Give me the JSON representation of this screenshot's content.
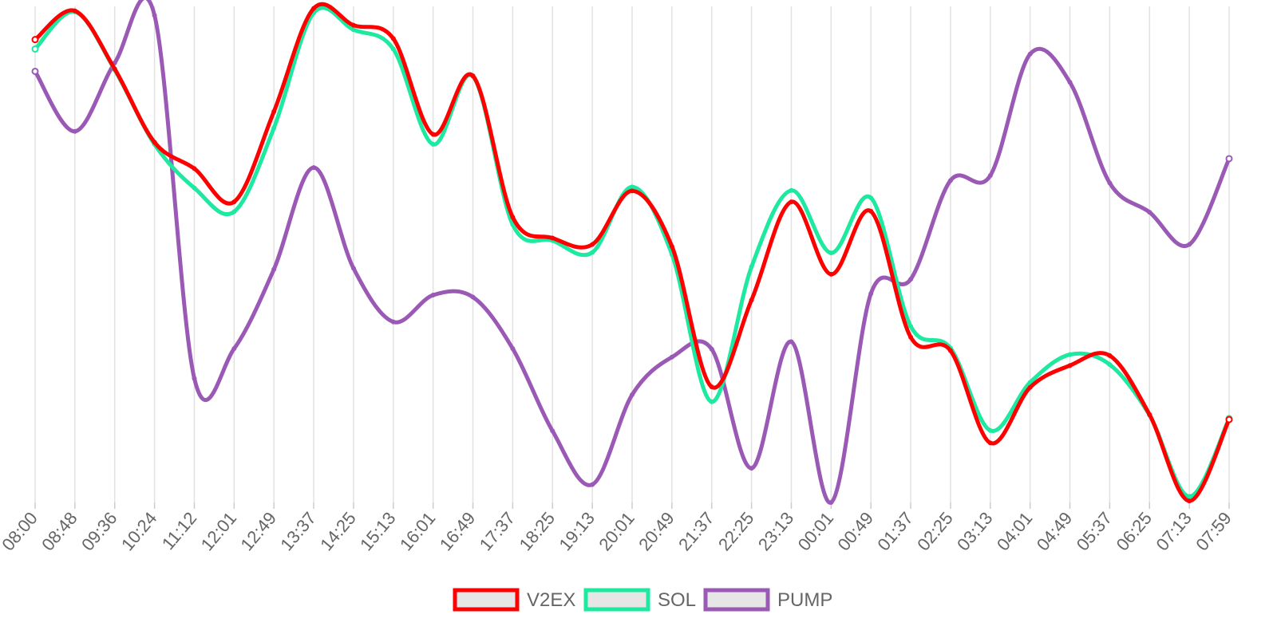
{
  "chart_data": {
    "type": "line",
    "title": "",
    "xlabel": "",
    "ylabel": "",
    "grid": "vertical",
    "legend_placement": "bottom-center",
    "x": [
      "08:00",
      "08:48",
      "09:36",
      "10:24",
      "11:12",
      "12:01",
      "12:49",
      "13:37",
      "14:25",
      "15:13",
      "16:01",
      "16:49",
      "17:37",
      "18:25",
      "19:13",
      "20:01",
      "20:49",
      "21:37",
      "22:25",
      "23:13",
      "00:01",
      "00:49",
      "01:37",
      "02:25",
      "03:13",
      "04:01",
      "04:49",
      "05:37",
      "06:25",
      "07:13",
      "07:59"
    ],
    "ylim": [
      0,
      100
    ],
    "series": [
      {
        "name": "V2EX",
        "color": "#ff0000",
        "values": [
          93.3,
          99.1,
          87.4,
          72.6,
          67.3,
          60.6,
          78.8,
          99.6,
          96.2,
          93.5,
          74.2,
          86.0,
          57.5,
          53.3,
          52.0,
          62.8,
          51.6,
          23.3,
          40.8,
          60.6,
          46.0,
          58.7,
          33.3,
          30.6,
          12.0,
          23.2,
          27.6,
          29.6,
          17.7,
          0.3,
          16.7
        ]
      },
      {
        "name": "SOL",
        "color": "#1de9a0",
        "values": [
          91.4,
          98.9,
          87.2,
          72.2,
          63.4,
          58.6,
          75.5,
          98.7,
          95.3,
          91.4,
          72.2,
          85.9,
          56.0,
          52.8,
          50.4,
          63.6,
          50.0,
          20.3,
          47.5,
          62.9,
          50.3,
          61.4,
          35.5,
          31.1,
          14.5,
          24.2,
          29.8,
          27.8,
          17.6,
          1.2,
          16.9
        ]
      },
      {
        "name": "PUMP",
        "color": "#9b59b6",
        "values": [
          86.9,
          74.8,
          88.6,
          98.2,
          25.0,
          31.0,
          47.0,
          67.5,
          47.2,
          36.4,
          41.8,
          41.4,
          31.0,
          14.4,
          3.6,
          21.7,
          29.3,
          30.9,
          6.9,
          32.4,
          0.0,
          42.1,
          45.0,
          64.9,
          65.9,
          90.4,
          84.7,
          64.4,
          58.5,
          52.0,
          69.3
        ]
      }
    ]
  }
}
